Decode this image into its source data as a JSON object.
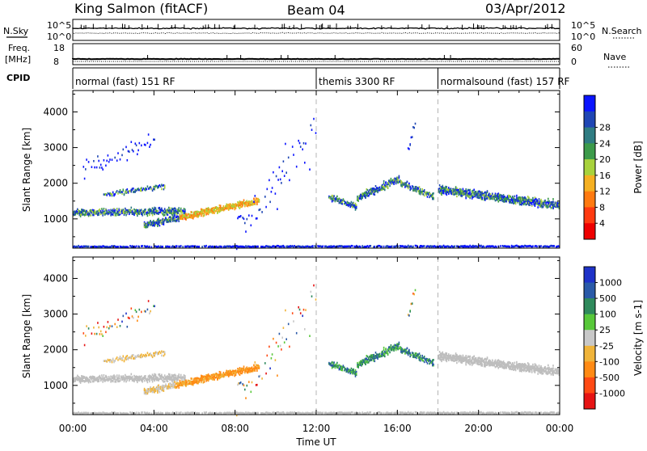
{
  "header": {
    "station": "King Salmon (fitACF)",
    "beam": "Beam 04",
    "date": "03/Apr/2012"
  },
  "side_labels": {
    "nsky": "N.Sky",
    "nsearch": "N.Search",
    "freq": "Freq.",
    "freq_unit": "[MHz]",
    "nave": "Nave",
    "cpid": "CPID",
    "nsky_top": "10^5",
    "nsky_bot": "10^0",
    "nsearch_top": "10^5",
    "nsearch_bot": "10^0",
    "freq_top": "18",
    "freq_bot": "8",
    "nave_top": "60",
    "nave_bot": "0"
  },
  "cpid_segments": [
    {
      "label": "normal (fast) 151 RF",
      "start_h": 0,
      "end_h": 12
    },
    {
      "label": "themis 3300 RF",
      "start_h": 12,
      "end_h": 18
    },
    {
      "label": "normalsound (fast) 157 RF",
      "start_h": 18,
      "end_h": 24
    }
  ],
  "chart_data": [
    {
      "type": "heatmap",
      "name": "Power",
      "ylabel": "Slant Range [km]",
      "xlim_hours": [
        0,
        24
      ],
      "ylim_km": [
        180,
        4600
      ],
      "yticks": [
        1000,
        2000,
        3000,
        4000
      ],
      "colorbar": {
        "label": "Power [dB]",
        "ticks": [
          "4",
          "8",
          "12",
          "16",
          "20",
          "24",
          "28"
        ],
        "colors": [
          "#0a14ff",
          "#1f46b4",
          "#2f7c82",
          "#3c9a4a",
          "#a8d23c",
          "#f5b022",
          "#ff7a10",
          "#ff3a10",
          "#ee0000"
        ]
      }
    },
    {
      "type": "heatmap",
      "name": "Velocity",
      "ylabel": "Slant Range [km]",
      "xlabel": "Time UT",
      "xlim_hours": [
        0,
        24
      ],
      "ylim_km": [
        180,
        4600
      ],
      "yticks": [
        1000,
        2000,
        3000,
        4000
      ],
      "xticks": [
        "00:00",
        "04:00",
        "08:00",
        "12:00",
        "16:00",
        "20:00",
        "00:00"
      ],
      "colorbar": {
        "label": "Velocity [m s-1]",
        "ticks": [
          "1000",
          "500",
          "100",
          "25",
          "-25",
          "-100",
          "-500",
          "-1000"
        ],
        "colors": [
          "#1e32c8",
          "#2a5aa8",
          "#2f8a5c",
          "#58c83a",
          "#c8c8c8",
          "#f0b43a",
          "#ff8a14",
          "#ff4a14",
          "#e61414"
        ]
      }
    }
  ],
  "colors": {
    "dashed_markers": "#b4b4b4",
    "ground_scatter": "#bebebe"
  }
}
